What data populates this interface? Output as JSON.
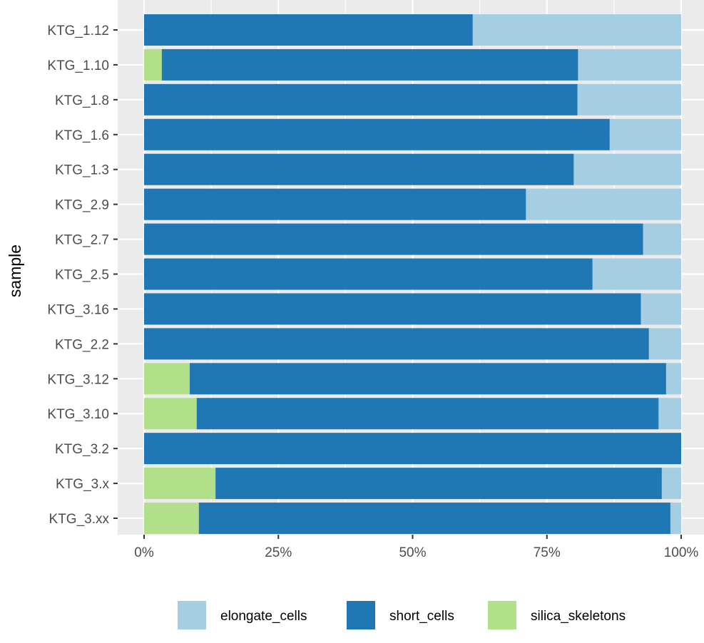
{
  "chart_data": {
    "type": "bar",
    "orientation": "horizontal",
    "stacked": true,
    "normalized": true,
    "title": "",
    "xlabel": "",
    "ylabel": "sample",
    "xlim": [
      0,
      1
    ],
    "x_ticks": [
      0,
      0.25,
      0.5,
      0.75,
      1
    ],
    "x_tick_labels": [
      "0%",
      "25%",
      "50%",
      "75%",
      "100%"
    ],
    "grid": true,
    "legend_position": "bottom",
    "background": "#ebebeb",
    "categories": [
      "KTG_1.12",
      "KTG_1.10",
      "KTG_1.8",
      "KTG_1.6",
      "KTG_1.3",
      "KTG_2.9",
      "KTG_2.7",
      "KTG_2.5",
      "KTG_3.16",
      "KTG_2.2",
      "KTG_3.12",
      "KTG_3.10",
      "KTG_3.2",
      "KTG_3.x",
      "KTG_3.xx"
    ],
    "series": [
      {
        "name": "silica_skeletons",
        "color": "#b2df8a",
        "values": [
          0,
          0.033,
          0,
          0,
          0,
          0,
          0,
          0,
          0,
          0,
          0.085,
          0.098,
          0,
          0.133,
          0.102
        ]
      },
      {
        "name": "short_cells",
        "color": "#1f78b4",
        "values": [
          0.612,
          0.775,
          0.807,
          0.867,
          0.8,
          0.711,
          0.929,
          0.835,
          0.925,
          0.94,
          0.887,
          0.86,
          1.0,
          0.831,
          0.878
        ]
      },
      {
        "name": "elongate_cells",
        "color": "#a6cee3",
        "values": [
          0.388,
          0.192,
          0.193,
          0.133,
          0.2,
          0.289,
          0.071,
          0.165,
          0.075,
          0.06,
          0.028,
          0.042,
          0,
          0.036,
          0.02
        ]
      }
    ],
    "legend_order": [
      "elongate_cells",
      "short_cells",
      "silica_skeletons"
    ]
  }
}
